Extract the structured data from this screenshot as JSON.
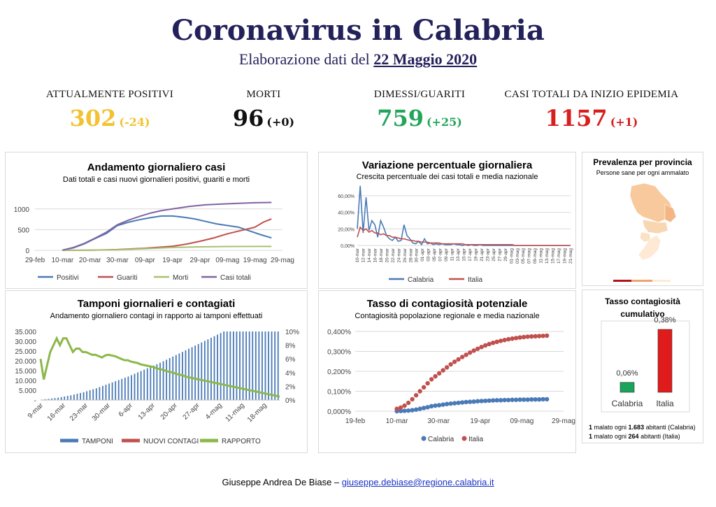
{
  "header": {
    "title": "Coronavirus in Calabria",
    "subtitle_prefix": "Elaborazione dati del",
    "subtitle_date": "22 Maggio 2020"
  },
  "stats": [
    {
      "label": "ATTUALMENTE POSITIVI",
      "value": "302",
      "delta": "(-24)",
      "color": "#f2c230"
    },
    {
      "label": "MORTI",
      "value": "96",
      "delta": "(+0)",
      "color": "#111111"
    },
    {
      "label": "DIMESSI/GUARITI",
      "value": "759",
      "delta": "(+25)",
      "color": "#23a55a"
    },
    {
      "label": "CASI TOTALI DA INIZIO EPIDEMIA",
      "value": "1157",
      "delta": "(+1)",
      "color": "#d91e1e"
    }
  ],
  "footer": {
    "author": "Giuseppe Andrea De Biase –",
    "email": "giuseppe.debiase@regione.calabria.it"
  },
  "prevalence": {
    "title": "Prevalenza per provincia",
    "subtitle": "Persone sane per ogni ammalato"
  },
  "notes": {
    "line1_pre": "1",
    "line1_mid": " malato ogni ",
    "line1_num": "1.683",
    "line1_post": " abitanti (Calabria)",
    "line2_pre": "1",
    "line2_mid": " malato ogni ",
    "line2_num": "264",
    "line2_post": " abitanti (Italia)"
  },
  "chart_data": [
    {
      "id": "daily",
      "type": "line",
      "title": "Andamento giornaliero casi",
      "subtitle": "Dati totali e casi nuovi giornalieri positivi, guariti e morti",
      "x_ticks": [
        "29-feb",
        "10-mar",
        "20-mar",
        "30-mar",
        "09-apr",
        "19-apr",
        "29-apr",
        "09-mag",
        "19-mag",
        "29-mag"
      ],
      "y_ticks": [
        "0",
        "500",
        "1000"
      ],
      "ylim": [
        0,
        1250
      ],
      "days_range": [
        0,
        90
      ],
      "series": [
        {
          "name": "Positivi",
          "color": "#4a7ab6",
          "x": [
            10,
            14,
            18,
            22,
            26,
            30,
            34,
            38,
            42,
            46,
            50,
            54,
            58,
            62,
            66,
            70,
            74,
            78,
            82,
            86
          ],
          "y": [
            5,
            60,
            160,
            290,
            410,
            600,
            680,
            740,
            790,
            830,
            830,
            800,
            760,
            700,
            640,
            600,
            560,
            470,
            380,
            302
          ]
        },
        {
          "name": "Guariti",
          "color": "#c0504d",
          "x": [
            10,
            20,
            30,
            40,
            50,
            55,
            60,
            65,
            70,
            75,
            80,
            83,
            86
          ],
          "y": [
            0,
            5,
            20,
            50,
            100,
            150,
            220,
            300,
            400,
            480,
            560,
            680,
            759
          ]
        },
        {
          "name": "Morti",
          "color": "#a8c070",
          "x": [
            10,
            20,
            30,
            40,
            50,
            60,
            70,
            80,
            86
          ],
          "y": [
            0,
            4,
            12,
            40,
            70,
            85,
            92,
            95,
            96
          ]
        },
        {
          "name": "Casi totali",
          "color": "#8064a2",
          "x": [
            10,
            14,
            18,
            22,
            26,
            30,
            34,
            38,
            42,
            46,
            50,
            56,
            62,
            68,
            74,
            80,
            86
          ],
          "y": [
            5,
            70,
            170,
            300,
            440,
            620,
            730,
            820,
            900,
            960,
            1000,
            1060,
            1100,
            1120,
            1135,
            1150,
            1157
          ]
        }
      ]
    },
    {
      "id": "variation",
      "type": "line",
      "title": "Variazione percentuale giornaliera",
      "subtitle": "Crescita percentuale dei casi totali e media nazionale",
      "y_ticks": [
        "0,00%",
        "20,00%",
        "40,00%",
        "60,00%"
      ],
      "ylim": [
        0,
        70
      ],
      "x_ticks": [
        "10-mar",
        "12-mar",
        "14-mar",
        "16-mar",
        "18-mar",
        "20-mar",
        "22-mar",
        "24-mar",
        "26-mar",
        "28-mar",
        "30-mar",
        "01-apr",
        "03-apr",
        "05-apr",
        "07-apr",
        "09-apr",
        "11-apr",
        "13-apr",
        "15-apr",
        "17-apr",
        "19-apr",
        "21-apr",
        "23-apr",
        "25-apr",
        "27-apr",
        "29-apr",
        "01-mag",
        "03-mag",
        "05-mag",
        "07-mag",
        "09-mag",
        "11-mag",
        "13-mag",
        "15-mag",
        "17-mag",
        "19-mag",
        "21-mag"
      ],
      "series": [
        {
          "name": "Calabria",
          "color": "#4a7ab6",
          "y": [
            20,
            72,
            15,
            58,
            18,
            30,
            25,
            10,
            30,
            22,
            12,
            8,
            6,
            10,
            5,
            6,
            25,
            12,
            8,
            3,
            2,
            5,
            1,
            8,
            2,
            3,
            1,
            2,
            1,
            2,
            1,
            1,
            1,
            2,
            1,
            1,
            0,
            1,
            0,
            1,
            0,
            0,
            1,
            0,
            0,
            0,
            0,
            0,
            0,
            0,
            0,
            0,
            0,
            0,
            0,
            0,
            0,
            0,
            0,
            0,
            0,
            0,
            0,
            0,
            0,
            0,
            0,
            0,
            0,
            0,
            0,
            0,
            0,
            0
          ]
        },
        {
          "name": "Italia",
          "color": "#c0504d",
          "y": [
            10,
            22,
            18,
            20,
            16,
            18,
            15,
            15,
            13,
            14,
            12,
            12,
            10,
            10,
            9,
            8,
            8,
            7,
            6,
            6,
            5,
            5,
            4,
            4,
            4,
            3,
            3,
            3,
            3,
            2,
            2,
            2,
            2,
            2,
            2,
            2,
            2,
            1,
            1,
            1,
            1,
            1,
            1,
            1,
            1,
            1,
            1,
            1,
            1,
            1,
            1,
            1,
            1,
            1,
            0,
            0,
            0,
            0,
            0,
            0,
            0,
            0,
            0,
            0,
            0,
            0,
            0,
            0,
            0,
            0,
            0,
            0,
            0,
            0
          ]
        }
      ]
    },
    {
      "id": "tamponi",
      "type": "bar",
      "title": "Tamponi giornalieri e contagiati",
      "subtitle": "Andamento giornaliero contagi in rapporto ai tamponi effettuati",
      "x_ticks": [
        "9-mar",
        "16-mar",
        "23-mar",
        "30-mar",
        "6-apr",
        "13-apr",
        "20-apr",
        "27-apr",
        "4-mag",
        "11-mag",
        "18-mag"
      ],
      "y_ticks": [
        "-",
        "5.000",
        "10.000",
        "15.000",
        "20.000",
        "25.000",
        "30.000",
        "35.000"
      ],
      "y2_ticks": [
        "0%",
        "2%",
        "4%",
        "6%",
        "8%",
        "10%"
      ],
      "legend": [
        "TAMPONI",
        "NUOVI CONTAGI",
        "RAPPORTO"
      ],
      "colors": [
        "#4a7ab6",
        "#c0504d",
        "#8cb84a"
      ],
      "bars": [
        200,
        400,
        600,
        800,
        1000,
        1200,
        1500,
        1800,
        2100,
        2400,
        2800,
        3200,
        3600,
        4000,
        4500,
        5000,
        5500,
        6000,
        6600,
        7200,
        7800,
        8400,
        9000,
        9600,
        10200,
        10800,
        11400,
        12000,
        12700,
        13400,
        14100,
        14800,
        15500,
        16200,
        16900,
        17600,
        18300,
        19000,
        19800,
        20600,
        21400,
        22200,
        23000,
        23800,
        24600,
        25400,
        26200,
        27000,
        27800,
        28600,
        29400,
        30200,
        31000,
        31800,
        32600,
        33400,
        34200,
        35000,
        35000,
        35000,
        35000,
        35000,
        35000,
        35000,
        35000,
        35000,
        35000,
        35000,
        35000,
        35000,
        35000,
        35000,
        35000,
        35000,
        35000
      ],
      "ratio": [
        6,
        3,
        5,
        7,
        8,
        9,
        8,
        9,
        9,
        8,
        7,
        7.5,
        7.5,
        7,
        7,
        6.8,
        6.6,
        6.6,
        6.4,
        6.2,
        6.5,
        6.6,
        6.5,
        6.4,
        6.2,
        6,
        5.8,
        5.8,
        5.6,
        5.5,
        5.4,
        5.2,
        5.1,
        5,
        4.9,
        4.8,
        4.6,
        4.5,
        4.4,
        4.2,
        4.1,
        4,
        3.8,
        3.7,
        3.6,
        3.4,
        3.3,
        3.2,
        3.1,
        3,
        2.9,
        2.8,
        2.7,
        2.6,
        2.5,
        2.4,
        2.3,
        2.2,
        2.1,
        2.0,
        1.9,
        1.8,
        1.7,
        1.6,
        1.5,
        1.4,
        1.3,
        1.2,
        1.1,
        1.0,
        0.9,
        0.8,
        0.7,
        0.6,
        0.5
      ]
    },
    {
      "id": "tasso",
      "type": "scatter",
      "title": "Tasso di contagiosità potenziale",
      "subtitle": "Contagiosità popolazione regionale e media nazionale",
      "x_ticks": [
        "19-feb",
        "10-mar",
        "30-mar",
        "19-apr",
        "09-mag",
        "29-mag"
      ],
      "y_ticks": [
        "0,000%",
        "0,100%",
        "0,200%",
        "0,300%",
        "0,400%"
      ],
      "ylim": [
        0,
        0.4
      ],
      "series": [
        {
          "name": "Calabria",
          "color": "#4a7ab6",
          "x_range": [
            20,
            92
          ],
          "y": [
            0.0,
            0.001,
            0.002,
            0.003,
            0.005,
            0.008,
            0.012,
            0.016,
            0.02,
            0.025,
            0.028,
            0.03,
            0.033,
            0.036,
            0.038,
            0.04,
            0.042,
            0.044,
            0.046,
            0.047,
            0.048,
            0.05,
            0.051,
            0.052,
            0.053,
            0.054,
            0.055,
            0.055,
            0.056,
            0.056,
            0.057,
            0.057,
            0.058,
            0.058,
            0.058,
            0.059,
            0.059,
            0.059,
            0.06,
            0.06
          ]
        },
        {
          "name": "Italia",
          "color": "#c0504d",
          "x_range": [
            20,
            92
          ],
          "y": [
            0.012,
            0.018,
            0.028,
            0.042,
            0.06,
            0.08,
            0.1,
            0.12,
            0.14,
            0.16,
            0.175,
            0.19,
            0.205,
            0.22,
            0.235,
            0.248,
            0.26,
            0.272,
            0.283,
            0.294,
            0.304,
            0.313,
            0.322,
            0.33,
            0.337,
            0.343,
            0.348,
            0.353,
            0.357,
            0.361,
            0.364,
            0.367,
            0.37,
            0.372,
            0.374,
            0.375,
            0.376,
            0.377,
            0.378,
            0.379
          ]
        }
      ]
    },
    {
      "id": "cumulativo",
      "type": "bar",
      "title": "Tasso contagiosità cumulativo",
      "categories": [
        "Calabria",
        "Italia"
      ],
      "values": [
        0.06,
        0.38
      ],
      "labels": [
        "0,06%",
        "0,38%"
      ],
      "colors": [
        "#1aa35a",
        "#e01b1b"
      ]
    }
  ]
}
